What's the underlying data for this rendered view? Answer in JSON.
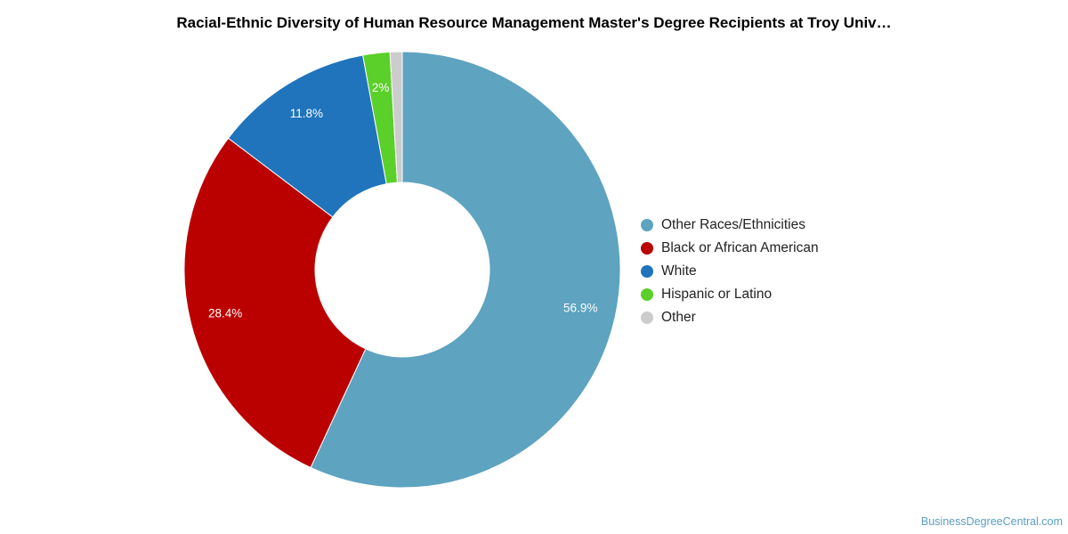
{
  "chart_data": {
    "type": "pie",
    "title": "Racial-Ethnic Diversity of Human Resource Management Master's Degree Recipients at Troy Univ…",
    "donut": true,
    "legend_position": "right",
    "slices": [
      {
        "label": "Other Races/Ethnicities",
        "value": 56.9,
        "display": "56.9%",
        "color": "#5ea3c0"
      },
      {
        "label": "Black or African American",
        "value": 28.4,
        "display": "28.4%",
        "color": "#bb0000"
      },
      {
        "label": "White",
        "value": 11.8,
        "display": "11.8%",
        "color": "#1f74bb"
      },
      {
        "label": "Hispanic or Latino",
        "value": 2.0,
        "display": "2%",
        "color": "#5bcf2a"
      },
      {
        "label": "Other",
        "value": 0.9,
        "display": "",
        "color": "#cccccc"
      }
    ]
  },
  "footer": {
    "source": "BusinessDegreeCentral.com"
  }
}
